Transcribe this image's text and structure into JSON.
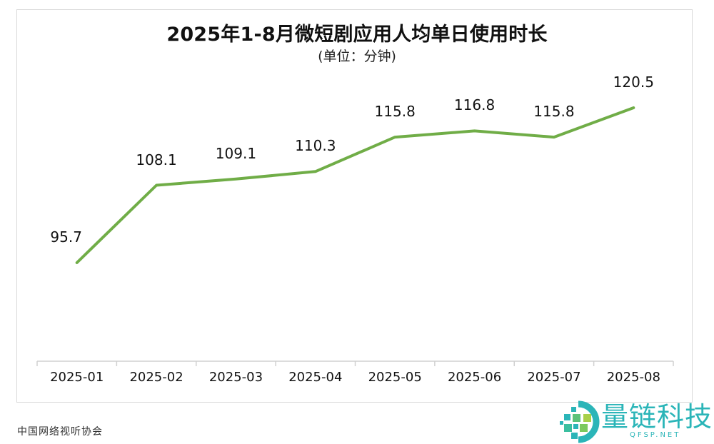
{
  "chart_data": {
    "type": "line",
    "title": "2025年1-8月微短剧应用人均单日使用时长",
    "subtitle": "(单位：分钟)",
    "xlabel": "",
    "ylabel": "",
    "categories": [
      "2025-01",
      "2025-02",
      "2025-03",
      "2025-04",
      "2025-05",
      "2025-06",
      "2025-07",
      "2025-08"
    ],
    "series": [
      {
        "name": "人均单日使用时长",
        "values": [
          95.7,
          108.1,
          109.1,
          110.3,
          115.8,
          116.8,
          115.8,
          120.5
        ],
        "color": "#70ad47"
      }
    ],
    "data_labels": [
      "95.7",
      "108.1",
      "109.1",
      "110.3",
      "115.8",
      "116.8",
      "115.8",
      "120.5"
    ],
    "grid": false,
    "legend": "none",
    "y_axis_visible": false
  },
  "source": "中国网络视听协会",
  "watermark": {
    "name": "量链科技",
    "url_text": "QFSP.NET",
    "color": "#2bb5b8"
  },
  "colors": {
    "line": "#70ad47",
    "axis": "#d0d0d0",
    "frame": "#d9d9d9"
  }
}
